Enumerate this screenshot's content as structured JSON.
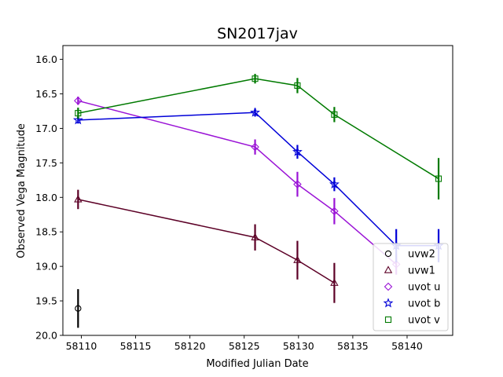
{
  "chart_data": {
    "type": "scatter",
    "title": "SN2017jav",
    "xlabel": "Modified Julian Date",
    "ylabel": "Observed Vega Magnitude",
    "xlim": [
      58108.3,
      58144.2
    ],
    "ylim": [
      20.0,
      15.8
    ],
    "y_inverted": true,
    "xticks": [
      58110,
      58115,
      58120,
      58125,
      58130,
      58135,
      58140
    ],
    "yticks": [
      16.0,
      16.5,
      17.0,
      17.5,
      18.0,
      18.5,
      19.0,
      19.5,
      20.0
    ],
    "grid": false,
    "legend_position": "lower right",
    "series": [
      {
        "name": "uvw2",
        "color": "#000000",
        "marker": "circle",
        "connected": false,
        "points": [
          {
            "x": 58109.7,
            "y": 19.61,
            "err": 0.28
          }
        ]
      },
      {
        "name": "uvw1",
        "color": "#5c0026",
        "marker": "triangle",
        "connected": true,
        "points": [
          {
            "x": 58109.7,
            "y": 18.03,
            "err": 0.14
          },
          {
            "x": 58126.0,
            "y": 18.58,
            "err": 0.19
          },
          {
            "x": 58129.9,
            "y": 18.91,
            "err": 0.28
          },
          {
            "x": 58133.3,
            "y": 19.24,
            "err": 0.29
          }
        ]
      },
      {
        "name": "uvot u",
        "color": "#9a13d6",
        "marker": "diamond",
        "connected": true,
        "points": [
          {
            "x": 58109.7,
            "y": 16.6,
            "err": 0.06
          },
          {
            "x": 58126.0,
            "y": 17.27,
            "err": 0.11
          },
          {
            "x": 58129.9,
            "y": 17.81,
            "err": 0.18
          },
          {
            "x": 58133.3,
            "y": 18.2,
            "err": 0.19
          },
          {
            "x": 58139.0,
            "y": 18.97,
            "err": 0.15
          }
        ]
      },
      {
        "name": "uvot b",
        "color": "#0000d8",
        "marker": "star",
        "connected": true,
        "points": [
          {
            "x": 58109.7,
            "y": 16.88,
            "err": 0.05
          },
          {
            "x": 58126.0,
            "y": 16.77,
            "err": 0.06
          },
          {
            "x": 58129.9,
            "y": 17.34,
            "err": 0.1
          },
          {
            "x": 58133.3,
            "y": 17.81,
            "err": 0.1
          },
          {
            "x": 58139.0,
            "y": 18.7,
            "err": 0.24
          },
          {
            "x": 58142.9,
            "y": 18.7,
            "err": 0.24
          }
        ]
      },
      {
        "name": "uvot v",
        "color": "#007a00",
        "marker": "square",
        "connected": true,
        "points": [
          {
            "x": 58109.7,
            "y": 16.78,
            "err": 0.08
          },
          {
            "x": 58126.0,
            "y": 16.28,
            "err": 0.07
          },
          {
            "x": 58129.9,
            "y": 16.38,
            "err": 0.11
          },
          {
            "x": 58133.3,
            "y": 16.8,
            "err": 0.11
          },
          {
            "x": 58142.9,
            "y": 17.73,
            "err": 0.3
          }
        ]
      }
    ]
  }
}
